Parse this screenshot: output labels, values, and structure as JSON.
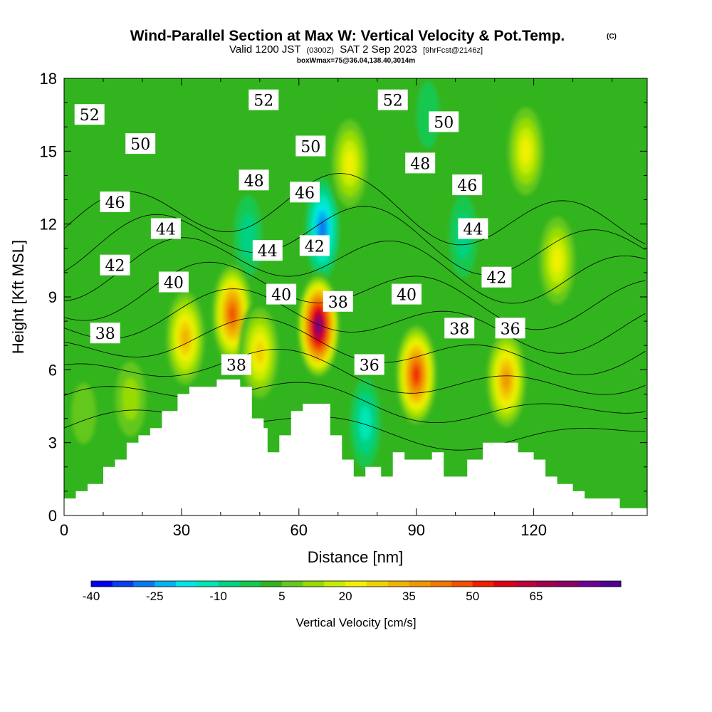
{
  "chart_data": {
    "type": "heatmap",
    "title": "Wind-Parallel Section at Max W: Vertical Velocity & Pot.Temp.",
    "title_suffix": "(C)",
    "subtitle": {
      "lead": "Valid 1200 JST",
      "utc": "(0300Z)",
      "date": "SAT 2 Sep 2023",
      "forecast": "[9hrFcst@2146z]"
    },
    "subtitle2": "boxWmax=75@36.04,138.40,3014m",
    "xlabel": "Distance [nm]",
    "ylabel": "Height [Kft MSL]",
    "xlim": [
      0,
      149
    ],
    "ylim": [
      0,
      18
    ],
    "xticks": [
      0,
      30,
      60,
      90,
      120
    ],
    "yticks": [
      0,
      3,
      6,
      9,
      12,
      15,
      18
    ],
    "colorbar": {
      "label": "Vertical Velocity [cm/s]",
      "min": -40,
      "step": 5,
      "tick_labels": [
        "-40",
        "-25",
        "-10",
        "5",
        "20",
        "35",
        "50",
        "65"
      ],
      "colors": [
        "#0000f0",
        "#0a3cf0",
        "#0a78f0",
        "#00b4f0",
        "#00e6e6",
        "#00e6b4",
        "#00d282",
        "#14c850",
        "#32b41e",
        "#64c81e",
        "#96dc00",
        "#c8ec00",
        "#f0f000",
        "#f0d200",
        "#f0b400",
        "#f09600",
        "#f07800",
        "#f05000",
        "#f01e00",
        "#dc0014",
        "#be003c",
        "#a00050",
        "#8c0064",
        "#6e0096",
        "#500096"
      ]
    },
    "updrafts": [
      {
        "x": 5,
        "y": 4.2,
        "w": 6
      },
      {
        "x": 17,
        "y": 4.8,
        "w": 12
      },
      {
        "x": 31,
        "y": 7.3,
        "w": 34
      },
      {
        "x": 43,
        "y": 8.3,
        "w": 48
      },
      {
        "x": 50,
        "y": 6.7,
        "w": 26
      },
      {
        "x": 65,
        "y": 7.8,
        "w": 75
      },
      {
        "x": 73,
        "y": 14.5,
        "w": 22
      },
      {
        "x": 90,
        "y": 5.8,
        "w": 50
      },
      {
        "x": 113,
        "y": 5.6,
        "w": 38
      },
      {
        "x": 118,
        "y": 15.0,
        "w": 22
      },
      {
        "x": 126,
        "y": 10.5,
        "w": 20
      }
    ],
    "downdrafts": [
      {
        "x": 66,
        "y": 11.8,
        "w": -30
      },
      {
        "x": 77,
        "y": 3.8,
        "w": -15
      },
      {
        "x": 47,
        "y": 11.5,
        "w": -12
      },
      {
        "x": 102,
        "y": 11.5,
        "w": -10
      },
      {
        "x": 93,
        "y": 16.5,
        "w": -8
      }
    ],
    "terrain": [
      [
        0,
        0.7
      ],
      [
        3,
        0.7
      ],
      [
        3,
        1.0
      ],
      [
        6,
        1.0
      ],
      [
        6,
        1.3
      ],
      [
        10,
        1.3
      ],
      [
        10,
        2.0
      ],
      [
        13,
        2.0
      ],
      [
        13,
        2.3
      ],
      [
        16,
        2.3
      ],
      [
        16,
        3.0
      ],
      [
        19,
        3.0
      ],
      [
        19,
        3.3
      ],
      [
        22,
        3.3
      ],
      [
        22,
        3.6
      ],
      [
        25,
        3.6
      ],
      [
        25,
        4.3
      ],
      [
        29,
        4.3
      ],
      [
        29,
        5.0
      ],
      [
        32,
        5.0
      ],
      [
        32,
        5.3
      ],
      [
        39,
        5.3
      ],
      [
        39,
        5.6
      ],
      [
        45,
        5.6
      ],
      [
        45,
        5.3
      ],
      [
        48,
        5.3
      ],
      [
        48,
        4.0
      ],
      [
        51,
        4.0
      ],
      [
        51,
        3.6
      ],
      [
        52,
        3.6
      ],
      [
        52,
        2.6
      ],
      [
        55,
        2.6
      ],
      [
        55,
        3.3
      ],
      [
        58,
        3.3
      ],
      [
        58,
        4.3
      ],
      [
        61,
        4.3
      ],
      [
        61,
        4.6
      ],
      [
        68,
        4.6
      ],
      [
        68,
        3.3
      ],
      [
        71,
        3.3
      ],
      [
        71,
        2.3
      ],
      [
        74,
        2.3
      ],
      [
        74,
        1.6
      ],
      [
        77,
        1.6
      ],
      [
        77,
        2.0
      ],
      [
        81,
        2.0
      ],
      [
        81,
        1.6
      ],
      [
        84,
        1.6
      ],
      [
        84,
        2.6
      ],
      [
        87,
        2.6
      ],
      [
        87,
        2.3
      ],
      [
        94,
        2.3
      ],
      [
        94,
        2.6
      ],
      [
        97,
        2.6
      ],
      [
        97,
        1.6
      ],
      [
        103,
        1.6
      ],
      [
        103,
        2.3
      ],
      [
        107,
        2.3
      ],
      [
        107,
        3.0
      ],
      [
        116,
        3.0
      ],
      [
        116,
        2.6
      ],
      [
        120,
        2.6
      ],
      [
        120,
        2.3
      ],
      [
        123,
        2.3
      ],
      [
        123,
        1.6
      ],
      [
        126,
        1.6
      ],
      [
        126,
        1.3
      ],
      [
        130,
        1.3
      ],
      [
        130,
        1.0
      ],
      [
        133,
        1.0
      ],
      [
        133,
        0.7
      ],
      [
        142,
        0.7
      ],
      [
        142,
        0.3
      ],
      [
        149,
        0.3
      ]
    ],
    "isentrope_levels": [
      36,
      38,
      40,
      42,
      44,
      46,
      48,
      50,
      52
    ],
    "isentrope_labels": [
      {
        "text": "52",
        "x": 6.5,
        "y": 16.5
      },
      {
        "text": "52",
        "x": 51,
        "y": 17.1
      },
      {
        "text": "52",
        "x": 84,
        "y": 17.1
      },
      {
        "text": "50",
        "x": 19.5,
        "y": 15.3
      },
      {
        "text": "50",
        "x": 63,
        "y": 15.2
      },
      {
        "text": "50",
        "x": 97,
        "y": 16.2
      },
      {
        "text": "48",
        "x": 48.5,
        "y": 13.8
      },
      {
        "text": "48",
        "x": 91,
        "y": 14.5
      },
      {
        "text": "46",
        "x": 13,
        "y": 12.9
      },
      {
        "text": "46",
        "x": 61.5,
        "y": 13.3
      },
      {
        "text": "46",
        "x": 103,
        "y": 13.6
      },
      {
        "text": "44",
        "x": 26,
        "y": 11.8
      },
      {
        "text": "44",
        "x": 52,
        "y": 10.9
      },
      {
        "text": "44",
        "x": 104.5,
        "y": 11.8
      },
      {
        "text": "42",
        "x": 13,
        "y": 10.3
      },
      {
        "text": "42",
        "x": 64,
        "y": 11.1
      },
      {
        "text": "42",
        "x": 110.5,
        "y": 9.8
      },
      {
        "text": "40",
        "x": 28,
        "y": 9.6
      },
      {
        "text": "40",
        "x": 55.5,
        "y": 9.1
      },
      {
        "text": "40",
        "x": 87.5,
        "y": 9.1
      },
      {
        "text": "38",
        "x": 10.5,
        "y": 7.5
      },
      {
        "text": "38",
        "x": 44,
        "y": 6.2
      },
      {
        "text": "38",
        "x": 70,
        "y": 8.8
      },
      {
        "text": "38",
        "x": 101,
        "y": 7.7
      },
      {
        "text": "36",
        "x": 78,
        "y": 6.2
      },
      {
        "text": "36",
        "x": 114,
        "y": 7.7
      }
    ]
  }
}
